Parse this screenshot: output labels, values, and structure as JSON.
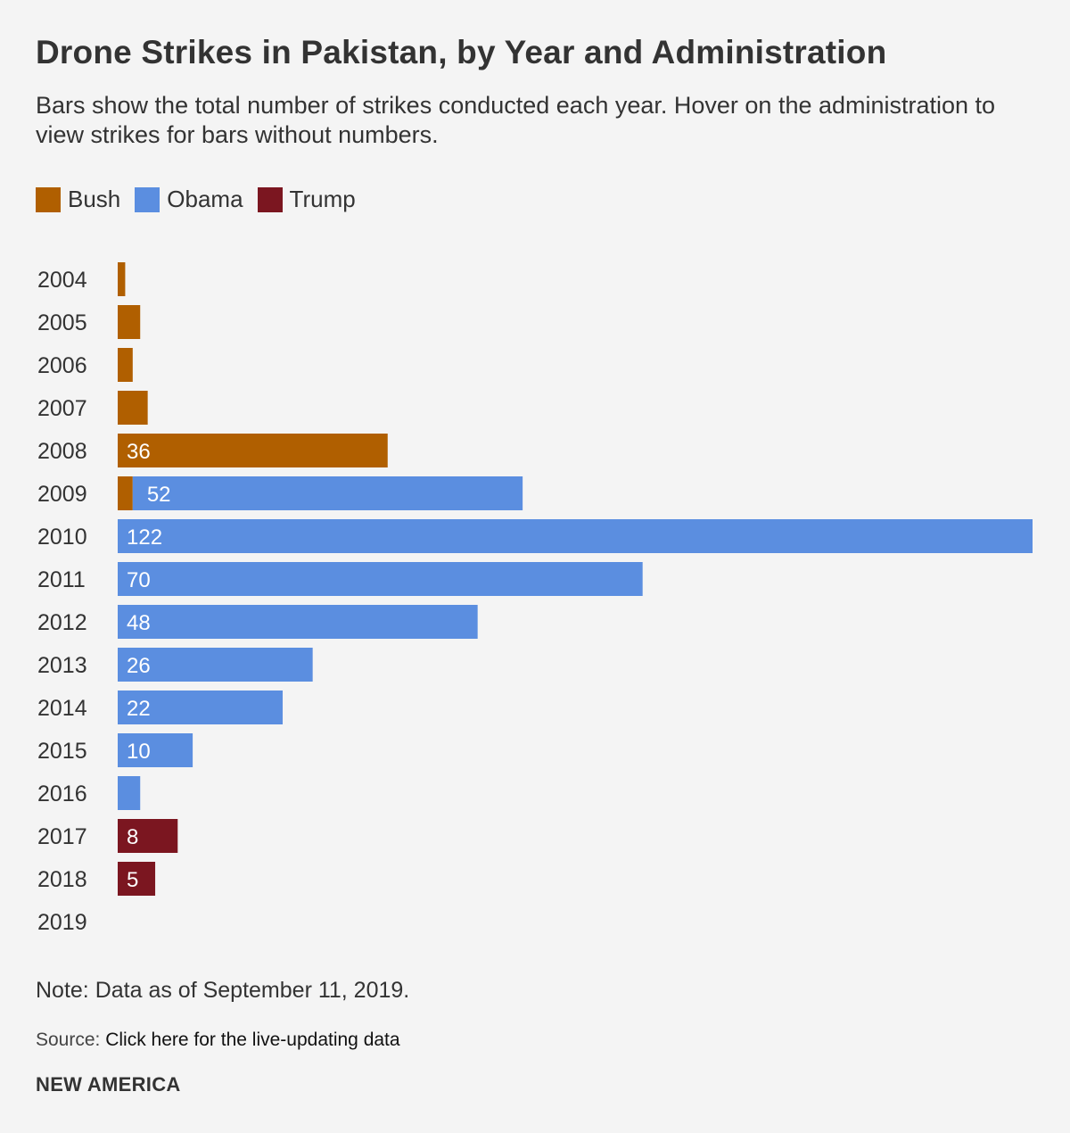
{
  "title": "Drone Strikes in Pakistan, by Year and Administration",
  "subtitle": "Bars show the total number of strikes conducted each year. Hover on the administration to view strikes for bars without numbers.",
  "legend": [
    {
      "name": "Bush",
      "color": "#b05f00"
    },
    {
      "name": "Obama",
      "color": "#5b8ee0"
    },
    {
      "name": "Trump",
      "color": "#7b1620"
    }
  ],
  "chart_data": {
    "type": "bar",
    "orientation": "horizontal",
    "stacked": true,
    "categories": [
      "2004",
      "2005",
      "2006",
      "2007",
      "2008",
      "2009",
      "2010",
      "2011",
      "2012",
      "2013",
      "2014",
      "2015",
      "2016",
      "2017",
      "2018",
      "2019"
    ],
    "series": [
      {
        "name": "Bush",
        "color": "#b05f00",
        "values": [
          1,
          3,
          2,
          4,
          36,
          2,
          0,
          0,
          0,
          0,
          0,
          0,
          0,
          0,
          0,
          0
        ]
      },
      {
        "name": "Obama",
        "color": "#5b8ee0",
        "values": [
          0,
          0,
          0,
          0,
          0,
          52,
          122,
          70,
          48,
          26,
          22,
          10,
          3,
          0,
          0,
          0
        ]
      },
      {
        "name": "Trump",
        "color": "#7b1620",
        "values": [
          0,
          0,
          0,
          0,
          0,
          0,
          0,
          0,
          0,
          0,
          0,
          0,
          0,
          8,
          5,
          0
        ]
      }
    ],
    "data_labels": [
      "",
      "",
      "",
      "",
      "36",
      "52",
      "122",
      "70",
      "48",
      "26",
      "22",
      "10",
      "",
      "8",
      "5",
      ""
    ],
    "xlim": [
      0,
      122
    ],
    "xlabel": "",
    "ylabel": ""
  },
  "note": "Note: Data as of September 11, 2019.",
  "source": {
    "prefix": "Source:",
    "link_text": "Click here for the live-updating data"
  },
  "brand": "NEW AMERICA"
}
